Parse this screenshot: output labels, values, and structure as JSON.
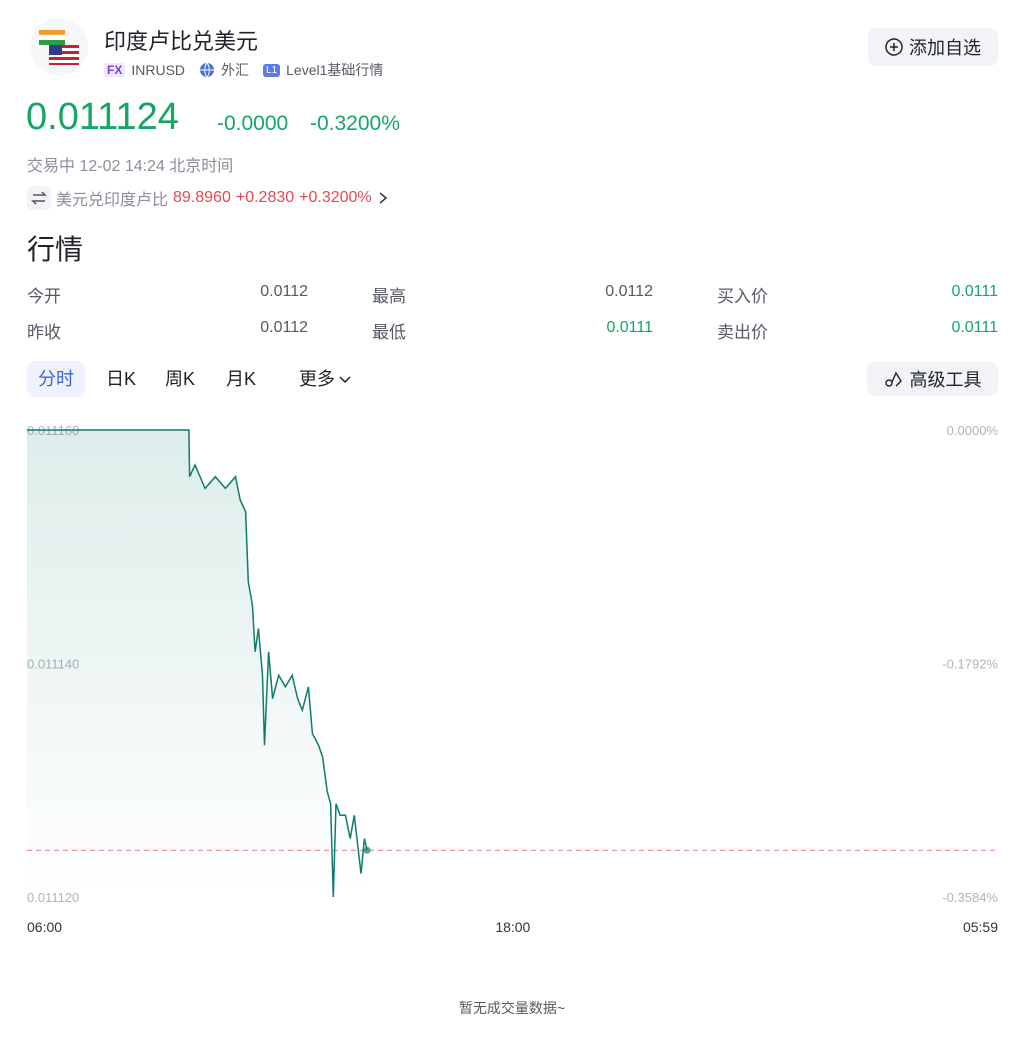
{
  "header": {
    "name": "印度卢比兑美元",
    "market": "FX",
    "symbol": "INRUSD",
    "asset_type": "外汇",
    "level_badge": "L1",
    "level": "Level1基础行情",
    "watch_button": "添加自选"
  },
  "quote": {
    "price": "0.011124",
    "change": "-0.0000",
    "change_pct": "-0.3200%",
    "status": "交易中 12-02 14:24 北京时间",
    "color": "#14a763",
    "inverse": {
      "name": "美元兑印度卢比",
      "price": "89.8960",
      "change": "+0.2830",
      "change_pct": "+0.3200%",
      "color": "#e5484d"
    }
  },
  "section_title": "行情",
  "stats": [
    {
      "label": "今开",
      "value": "0.0112",
      "color": "#555a63"
    },
    {
      "label": "最高",
      "value": "0.0112",
      "color": "#555a63"
    },
    {
      "label": "买入价",
      "value": "0.0111",
      "color": "#14a763"
    },
    {
      "label": "昨收",
      "value": "0.0112",
      "color": "#555a63"
    },
    {
      "label": "最低",
      "value": "0.0111",
      "color": "#14a763"
    },
    {
      "label": "卖出价",
      "value": "0.0111",
      "color": "#14a763"
    }
  ],
  "tabs": [
    "分时",
    "日K",
    "周K",
    "月K",
    "更多"
  ],
  "active_tab": 0,
  "tools_button": "高级工具",
  "chart_data": {
    "type": "line",
    "x": [
      "06:00",
      "10:00",
      "10:01",
      "10:09",
      "10:24",
      "10:39",
      "10:54",
      "11:09",
      "11:16",
      "11:24",
      "11:28",
      "11:34",
      "11:38",
      "11:43",
      "11:49",
      "11:52",
      "11:58",
      "12:04",
      "12:13",
      "12:23",
      "12:33",
      "12:41",
      "12:48",
      "12:57",
      "13:03",
      "13:12",
      "13:18",
      "13:25",
      "13:30",
      "13:34",
      "13:38",
      "13:44",
      "13:52",
      "13:59",
      "14:05",
      "14:11",
      "14:15",
      "14:20",
      "14:24"
    ],
    "series": [
      {
        "name": "INRUSD",
        "color": "#0f7c6c",
        "values": [
          0.01116,
          0.01116,
          0.011156,
          0.011157,
          0.011155,
          0.011156,
          0.011155,
          0.011156,
          0.011154,
          0.011153,
          0.011147,
          0.011145,
          0.011141,
          0.011143,
          0.011139,
          0.011133,
          0.011141,
          0.011137,
          0.011139,
          0.011138,
          0.011139,
          0.011137,
          0.011136,
          0.011138,
          0.011134,
          0.011133,
          0.011132,
          0.011129,
          0.011128,
          0.01112,
          0.011128,
          0.011127,
          0.011127,
          0.011125,
          0.011127,
          0.011124,
          0.011122,
          0.011125,
          0.011124
        ]
      }
    ],
    "xlim": [
      "06:00",
      "05:59"
    ],
    "xticks": [
      "06:00",
      "18:00",
      "05:59"
    ],
    "ylim": [
      0.01112,
      0.01116
    ],
    "yticks": [
      {
        "value": 0.01116,
        "label": "0.011160"
      },
      {
        "value": 0.01114,
        "label": "0.011140"
      },
      {
        "value": 0.01112,
        "label": "0.011120"
      }
    ],
    "y2lim": [
      -0.3584,
      0
    ],
    "y2ticks": [
      {
        "value": 0,
        "label": "0.0000%"
      },
      {
        "value": -0.1792,
        "label": "-0.1792%"
      },
      {
        "value": -0.3584,
        "label": "-0.3584%"
      }
    ],
    "reference_line": 0.011124,
    "reference_color": "#f08a8a"
  },
  "volume_note": "暂无成交量数据~"
}
